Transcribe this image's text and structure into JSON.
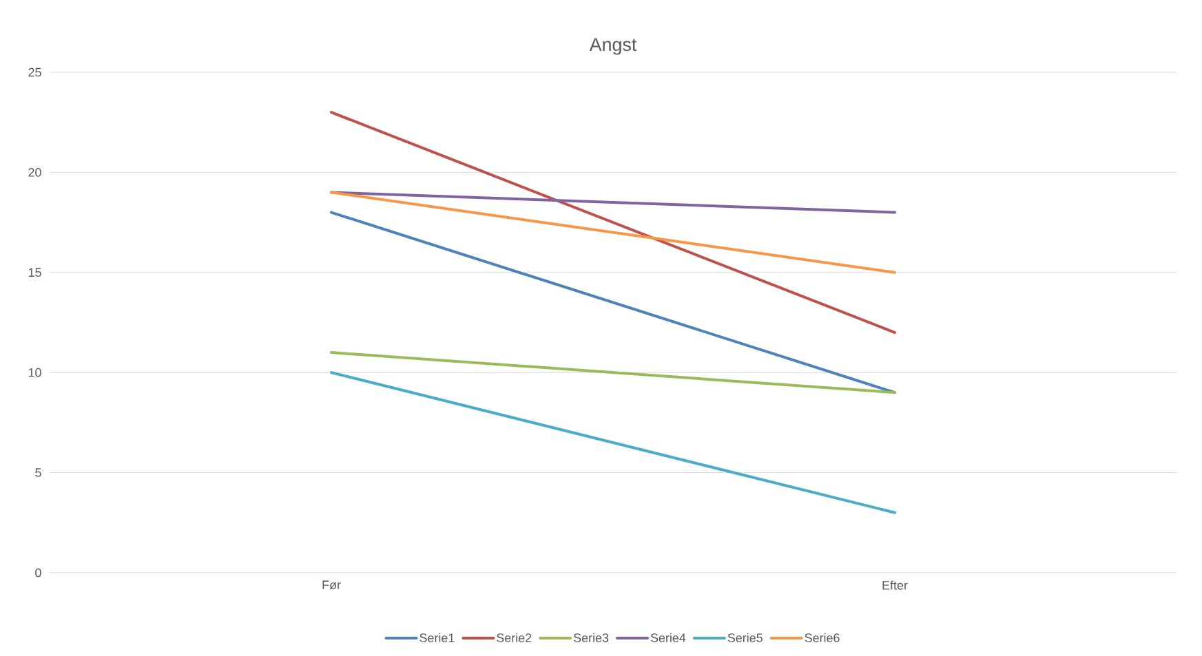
{
  "chart_data": {
    "type": "line",
    "title": "Angst",
    "categories": [
      "Før",
      "Efter"
    ],
    "series": [
      {
        "name": "Serie1",
        "color": "#4f81bd",
        "values": [
          18,
          9
        ]
      },
      {
        "name": "Serie2",
        "color": "#c0504d",
        "values": [
          23,
          12
        ]
      },
      {
        "name": "Serie3",
        "color": "#9bbb59",
        "values": [
          11,
          9
        ]
      },
      {
        "name": "Serie4",
        "color": "#8064a2",
        "values": [
          19,
          18
        ]
      },
      {
        "name": "Serie5",
        "color": "#4bacc6",
        "values": [
          10,
          3
        ]
      },
      {
        "name": "Serie6",
        "color": "#f79646",
        "values": [
          19,
          15
        ]
      }
    ],
    "ylim": [
      0,
      25
    ],
    "yticks": [
      0,
      5,
      10,
      15,
      20,
      25
    ],
    "grid": "y",
    "legend": "bottom"
  }
}
